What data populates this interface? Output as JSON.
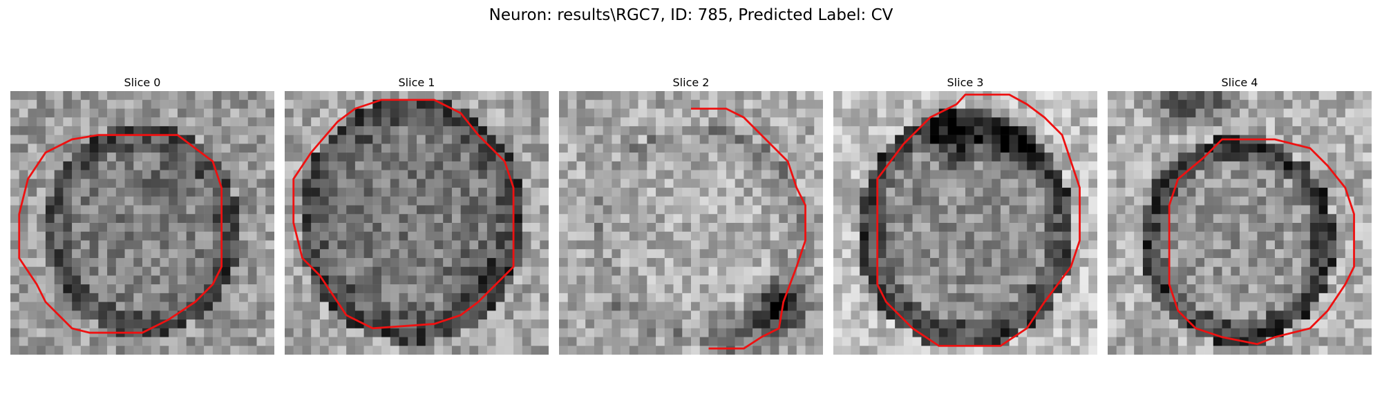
{
  "figure": {
    "title": "Neuron: results\\RGC7, ID: 785, Predicted Label: CV"
  },
  "panels": [
    {
      "title": "Slice 0"
    },
    {
      "title": "Slice 1"
    },
    {
      "title": "Slice 2"
    },
    {
      "title": "Slice 3"
    },
    {
      "title": "Slice 4"
    }
  ],
  "style": {
    "contour_color": "#ee1111"
  }
}
